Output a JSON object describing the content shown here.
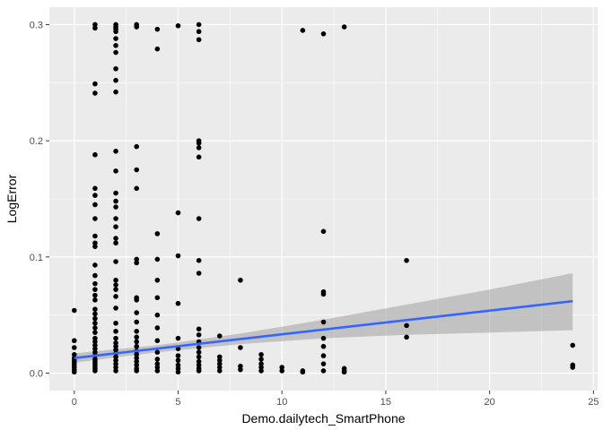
{
  "chart_data": {
    "type": "scatter",
    "title": "",
    "xlabel": "Demo.dailytech_SmartPhone",
    "ylabel": "LogError",
    "xlim": [
      -1.2,
      25.2
    ],
    "ylim": [
      -0.015,
      0.315
    ],
    "x_ticks": [
      0,
      5,
      10,
      15,
      20,
      25
    ],
    "x_tick_labels": [
      "0",
      "5",
      "10",
      "15",
      "20",
      "25"
    ],
    "y_ticks": [
      0.0,
      0.1,
      0.2,
      0.3
    ],
    "y_tick_labels": [
      "0.0",
      "0.1",
      "0.2",
      "0.3"
    ],
    "grid": true,
    "legend": "none",
    "colors": {
      "panel_background": "#ebebeb",
      "grid_line": "#ffffff",
      "points": "#000000",
      "trend_line": "#3366ff",
      "confidence_band": "#999999"
    },
    "points": [
      [
        0,
        0.054
      ],
      [
        0,
        0.028
      ],
      [
        0,
        0.022
      ],
      [
        0,
        0.016
      ],
      [
        0,
        0.013
      ],
      [
        0,
        0.011
      ],
      [
        0,
        0.009
      ],
      [
        0,
        0.007
      ],
      [
        0,
        0.005
      ],
      [
        0,
        0.003
      ],
      [
        0,
        0.001
      ],
      [
        1,
        0.3
      ],
      [
        1,
        0.297
      ],
      [
        1,
        0.249
      ],
      [
        1,
        0.241
      ],
      [
        1,
        0.188
      ],
      [
        1,
        0.159
      ],
      [
        1,
        0.153
      ],
      [
        1,
        0.145
      ],
      [
        1,
        0.133
      ],
      [
        1,
        0.118
      ],
      [
        1,
        0.112
      ],
      [
        1,
        0.109
      ],
      [
        1,
        0.093
      ],
      [
        1,
        0.084
      ],
      [
        1,
        0.077
      ],
      [
        1,
        0.072
      ],
      [
        1,
        0.067
      ],
      [
        1,
        0.063
      ],
      [
        1,
        0.055
      ],
      [
        1,
        0.051
      ],
      [
        1,
        0.047
      ],
      [
        1,
        0.043
      ],
      [
        1,
        0.039
      ],
      [
        1,
        0.035
      ],
      [
        1,
        0.03
      ],
      [
        1,
        0.027
      ],
      [
        1,
        0.024
      ],
      [
        1,
        0.021
      ],
      [
        1,
        0.018
      ],
      [
        1,
        0.015
      ],
      [
        1,
        0.012
      ],
      [
        1,
        0.01
      ],
      [
        1,
        0.008
      ],
      [
        1,
        0.006
      ],
      [
        1,
        0.004
      ],
      [
        1,
        0.002
      ],
      [
        2,
        0.3
      ],
      [
        2,
        0.298
      ],
      [
        2,
        0.296
      ],
      [
        2,
        0.294
      ],
      [
        2,
        0.288
      ],
      [
        2,
        0.282
      ],
      [
        2,
        0.276
      ],
      [
        2,
        0.262
      ],
      [
        2,
        0.252
      ],
      [
        2,
        0.242
      ],
      [
        2,
        0.191
      ],
      [
        2,
        0.174
      ],
      [
        2,
        0.155
      ],
      [
        2,
        0.148
      ],
      [
        2,
        0.143
      ],
      [
        2,
        0.133
      ],
      [
        2,
        0.126
      ],
      [
        2,
        0.116
      ],
      [
        2,
        0.112
      ],
      [
        2,
        0.096
      ],
      [
        2,
        0.08
      ],
      [
        2,
        0.076
      ],
      [
        2,
        0.072
      ],
      [
        2,
        0.066
      ],
      [
        2,
        0.056
      ],
      [
        2,
        0.043
      ],
      [
        2,
        0.036
      ],
      [
        2,
        0.03
      ],
      [
        2,
        0.026
      ],
      [
        2,
        0.023
      ],
      [
        2,
        0.02
      ],
      [
        2,
        0.017
      ],
      [
        2,
        0.014
      ],
      [
        2,
        0.011
      ],
      [
        2,
        0.008
      ],
      [
        2,
        0.005
      ],
      [
        2,
        0.002
      ],
      [
        3,
        0.3
      ],
      [
        3,
        0.298
      ],
      [
        3,
        0.195
      ],
      [
        3,
        0.175
      ],
      [
        3,
        0.159
      ],
      [
        3,
        0.098
      ],
      [
        3,
        0.095
      ],
      [
        3,
        0.065
      ],
      [
        3,
        0.063
      ],
      [
        3,
        0.052
      ],
      [
        3,
        0.044
      ],
      [
        3,
        0.036
      ],
      [
        3,
        0.031
      ],
      [
        3,
        0.027
      ],
      [
        3,
        0.023
      ],
      [
        3,
        0.019
      ],
      [
        3,
        0.016
      ],
      [
        3,
        0.013
      ],
      [
        3,
        0.01
      ],
      [
        3,
        0.007
      ],
      [
        3,
        0.004
      ],
      [
        3,
        0.002
      ],
      [
        4,
        0.296
      ],
      [
        4,
        0.279
      ],
      [
        4,
        0.12
      ],
      [
        4,
        0.098
      ],
      [
        4,
        0.08
      ],
      [
        4,
        0.065
      ],
      [
        4,
        0.05
      ],
      [
        4,
        0.039
      ],
      [
        4,
        0.028
      ],
      [
        4,
        0.018
      ],
      [
        4,
        0.012
      ],
      [
        4,
        0.008
      ],
      [
        4,
        0.005
      ],
      [
        4,
        0.002
      ],
      [
        5,
        0.299
      ],
      [
        5,
        0.138
      ],
      [
        5,
        0.101
      ],
      [
        5,
        0.06
      ],
      [
        5,
        0.03
      ],
      [
        5,
        0.021
      ],
      [
        5,
        0.015
      ],
      [
        5,
        0.011
      ],
      [
        5,
        0.007
      ],
      [
        5,
        0.004
      ],
      [
        5,
        0.001
      ],
      [
        6,
        0.3
      ],
      [
        6,
        0.294
      ],
      [
        6,
        0.287
      ],
      [
        6,
        0.2
      ],
      [
        6,
        0.198
      ],
      [
        6,
        0.194
      ],
      [
        6,
        0.186
      ],
      [
        6,
        0.133
      ],
      [
        6,
        0.097
      ],
      [
        6,
        0.086
      ],
      [
        6,
        0.038
      ],
      [
        6,
        0.033
      ],
      [
        6,
        0.027
      ],
      [
        6,
        0.022
      ],
      [
        6,
        0.018
      ],
      [
        6,
        0.014
      ],
      [
        6,
        0.01
      ],
      [
        6,
        0.007
      ],
      [
        6,
        0.004
      ],
      [
        6,
        0.002
      ],
      [
        7,
        0.032
      ],
      [
        7,
        0.014
      ],
      [
        7,
        0.011
      ],
      [
        7,
        0.008
      ],
      [
        7,
        0.005
      ],
      [
        7,
        0.002
      ],
      [
        8,
        0.08
      ],
      [
        8,
        0.022
      ],
      [
        8,
        0.006
      ],
      [
        8,
        0.003
      ],
      [
        9,
        0.016
      ],
      [
        9,
        0.012
      ],
      [
        9,
        0.008
      ],
      [
        9,
        0.005
      ],
      [
        9,
        0.002
      ],
      [
        10,
        0.005
      ],
      [
        10,
        0.002
      ],
      [
        11,
        0.295
      ],
      [
        11,
        0.002
      ],
      [
        11,
        0.001
      ],
      [
        12,
        0.292
      ],
      [
        12,
        0.122
      ],
      [
        12,
        0.07
      ],
      [
        12,
        0.068
      ],
      [
        12,
        0.044
      ],
      [
        12,
        0.03
      ],
      [
        12,
        0.023
      ],
      [
        12,
        0.015
      ],
      [
        12,
        0.008
      ],
      [
        12,
        0.002
      ],
      [
        13,
        0.298
      ],
      [
        13,
        0.004
      ],
      [
        13,
        0.002
      ],
      [
        13,
        0.001
      ],
      [
        16,
        0.097
      ],
      [
        16,
        0.041
      ],
      [
        16,
        0.031
      ],
      [
        24,
        0.024
      ],
      [
        24,
        0.007
      ],
      [
        24,
        0.005
      ]
    ],
    "trend": {
      "x": [
        0,
        24
      ],
      "y": [
        0.013,
        0.062
      ]
    },
    "confidence_band": {
      "x": [
        0,
        4,
        8,
        12,
        16,
        20,
        24
      ],
      "lower": [
        0.009,
        0.018,
        0.025,
        0.03,
        0.033,
        0.035,
        0.037
      ],
      "upper": [
        0.017,
        0.024,
        0.034,
        0.046,
        0.059,
        0.072,
        0.086
      ]
    }
  }
}
